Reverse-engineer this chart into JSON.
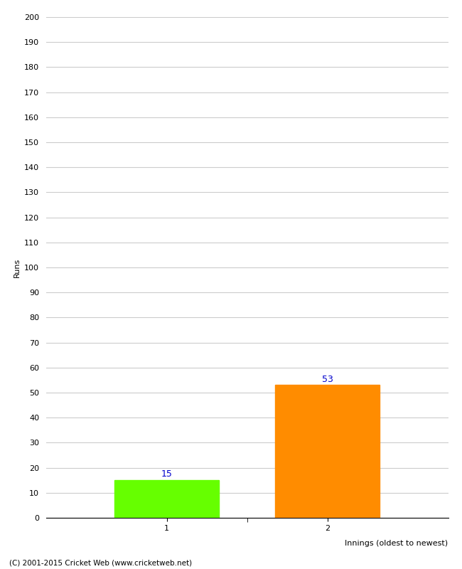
{
  "categories": [
    "1",
    "2"
  ],
  "values": [
    15,
    53
  ],
  "bar_colors": [
    "#66ff00",
    "#ff8c00"
  ],
  "xlabel": "Innings (oldest to newest)",
  "ylabel": "Runs",
  "ylim": [
    0,
    200
  ],
  "yticks": [
    0,
    10,
    20,
    30,
    40,
    50,
    60,
    70,
    80,
    90,
    100,
    110,
    120,
    130,
    140,
    150,
    160,
    170,
    180,
    190,
    200
  ],
  "bar_width": 0.65,
  "label_color": "#0000cc",
  "label_fontsize": 9,
  "ylabel_fontsize": 8,
  "xlabel_fontsize": 8,
  "tick_fontsize": 8,
  "footer": "(C) 2001-2015 Cricket Web (www.cricketweb.net)",
  "background_color": "#ffffff",
  "grid_color": "#cccccc"
}
